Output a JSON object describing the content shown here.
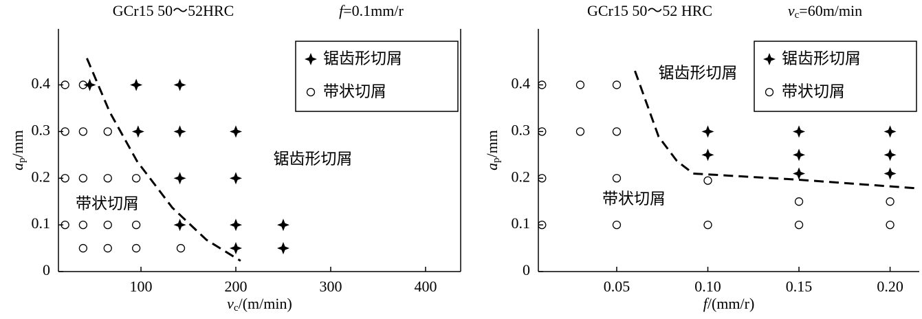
{
  "chart_data": [
    {
      "type": "scatter",
      "title": "GCr15 50～52HRC",
      "subtitle": {
        "symbol": "f",
        "rest": "=0.1mm/r"
      },
      "xlabel": {
        "symbol": "v",
        "subscript": "c",
        "rest": "/(m/min)"
      },
      "ylabel": {
        "symbol": "a",
        "subscript": "p",
        "rest": "/mm"
      },
      "xlim": [
        13,
        437
      ],
      "xticks": [
        100,
        200,
        300,
        400
      ],
      "ylim": [
        0,
        0.52
      ],
      "yticks": [
        0,
        0.1,
        0.2,
        0.3,
        0.4
      ],
      "legend": "upper right",
      "annotations": [
        "锯齿形切屑",
        "带状切屑"
      ],
      "series": [
        {
          "name": "锯齿形切屑",
          "marker": "star",
          "color": "#000000",
          "x": [
            46,
            95,
            141,
            97,
            141,
            200,
            141,
            200,
            141,
            200,
            250,
            200,
            250
          ],
          "y": [
            0.4,
            0.4,
            0.4,
            0.3,
            0.3,
            0.3,
            0.2,
            0.2,
            0.1,
            0.1,
            0.1,
            0.05,
            0.05
          ]
        },
        {
          "name": "带状切屑",
          "marker": "circle",
          "color": "#000000",
          "x": [
            20,
            39,
            20,
            39,
            65,
            20,
            39,
            65,
            95,
            20,
            39,
            65,
            95,
            39,
            65,
            95,
            142
          ],
          "y": [
            0.4,
            0.4,
            0.3,
            0.3,
            0.3,
            0.2,
            0.2,
            0.2,
            0.2,
            0.1,
            0.1,
            0.1,
            0.1,
            0.05,
            0.05,
            0.05,
            0.05
          ]
        },
        {
          "marker": "dashed-line",
          "color": "#000000",
          "x": [
            43,
            67,
            96,
            133,
            169,
            205
          ],
          "y": [
            0.457,
            0.342,
            0.236,
            0.137,
            0.068,
            0.023
          ]
        }
      ]
    },
    {
      "type": "scatter",
      "title": "GCr15 50～52 HRC",
      "subtitle": {
        "symbol": "v",
        "subscript": "c",
        "rest": "=60m/min"
      },
      "xlabel": {
        "symbol": "f",
        "rest": "/(mm/r)"
      },
      "ylabel": {
        "symbol": "a",
        "subscript": "p",
        "rest": "/mm"
      },
      "xlim": [
        0.007,
        0.216
      ],
      "xticks": [
        0.05,
        {
          "value": 0.1,
          "label": "0.10"
        },
        0.15,
        {
          "value": 0.2,
          "label": "0.20"
        }
      ],
      "ylim": [
        0,
        0.52
      ],
      "yticks": [
        0,
        0.1,
        0.2,
        0.3,
        0.4
      ],
      "legend": "upper right",
      "annotations": [
        "锯齿形切屑",
        "带状切屑"
      ],
      "series": [
        {
          "name": "锯齿形切屑",
          "marker": "star",
          "color": "#000000",
          "x": [
            0.1,
            0.15,
            0.2,
            0.1,
            0.15,
            0.2,
            0.15,
            0.2
          ],
          "y": [
            0.3,
            0.3,
            0.3,
            0.25,
            0.25,
            0.25,
            0.21,
            0.21
          ]
        },
        {
          "name": "带状切屑",
          "marker": "circle",
          "color": "#000000",
          "x": [
            0.009,
            0.03,
            0.05,
            0.009,
            0.03,
            0.05,
            0.009,
            0.05,
            0.1,
            0.15,
            0.2,
            0.009,
            0.05,
            0.1,
            0.15,
            0.2
          ],
          "y": [
            0.4,
            0.4,
            0.4,
            0.3,
            0.3,
            0.3,
            0.2,
            0.2,
            0.195,
            0.15,
            0.15,
            0.1,
            0.1,
            0.1,
            0.1,
            0.1
          ]
        },
        {
          "marker": "dashed-line",
          "color": "#000000",
          "x": [
            0.06,
            0.073,
            0.083,
            0.092,
            0.149,
            0.216
          ],
          "y": [
            0.43,
            0.289,
            0.237,
            0.21,
            0.197,
            0.178
          ]
        }
      ]
    }
  ]
}
